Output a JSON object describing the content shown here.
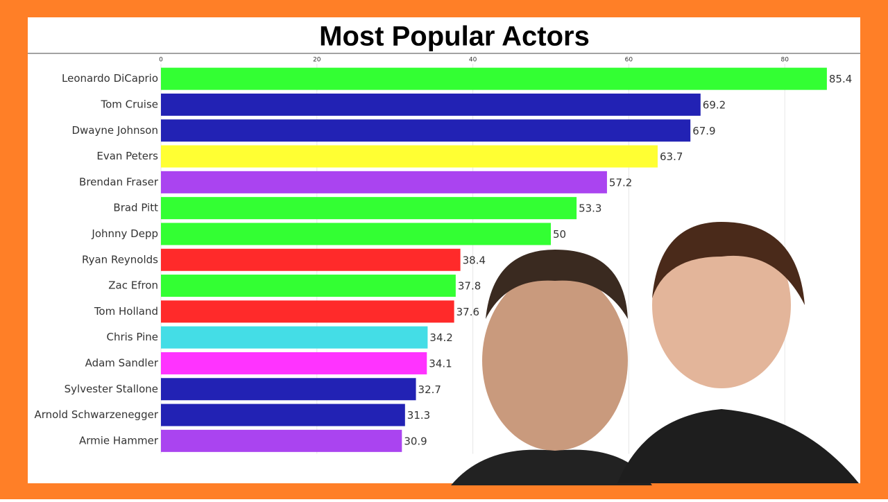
{
  "chart_data": {
    "type": "bar",
    "orientation": "horizontal",
    "title": "Most Popular Actors",
    "categories": [
      "Leonardo DiCaprio",
      "Tom Cruise",
      "Dwayne Johnson",
      "Evan Peters",
      "Brendan Fraser",
      "Brad Pitt",
      "Johnny Depp",
      "Ryan Reynolds",
      "Zac Efron",
      "Tom Holland",
      "Chris Pine",
      "Adam Sandler",
      "Sylvester Stallone",
      "Arnold Schwarzenegger",
      "Armie Hammer"
    ],
    "values": [
      85.4,
      69.2,
      67.9,
      63.7,
      57.2,
      53.3,
      50,
      38.4,
      37.8,
      37.6,
      34.2,
      34.1,
      32.7,
      31.3,
      30.9
    ],
    "colors": [
      "#33ff33",
      "#2222b4",
      "#2222b4",
      "#ffff33",
      "#aa44f0",
      "#33ff33",
      "#33ff33",
      "#ff2a2a",
      "#33ff33",
      "#ff2a2a",
      "#44dde6",
      "#ff33ff",
      "#2222b4",
      "#2222b4",
      "#aa44f0"
    ],
    "xlim": [
      0,
      88
    ],
    "xticks": [
      0,
      20,
      40,
      60,
      80
    ],
    "grid": true
  }
}
